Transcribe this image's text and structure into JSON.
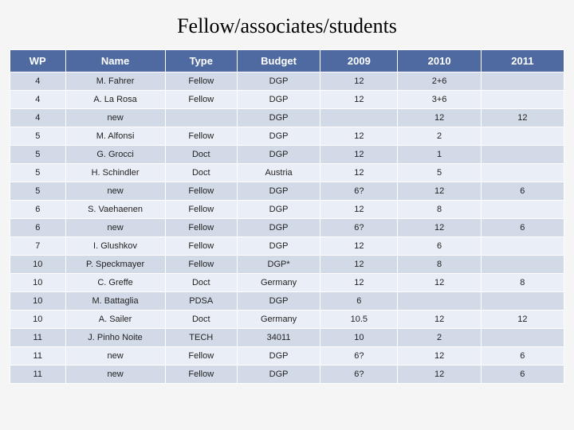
{
  "title": "Fellow/associates/students",
  "table": {
    "type": "table",
    "header_bg": "#4f6aa0",
    "header_fg": "#ffffff",
    "row_odd_bg": "#d2dae8",
    "row_even_bg": "#eaeef6",
    "border_color": "#ffffff",
    "header_fontsize": 13,
    "cell_fontsize": 11,
    "columns": [
      "WP",
      "Name",
      "Type",
      "Budget",
      "2009",
      "2010",
      "2011"
    ],
    "col_widths_pct": [
      10,
      18,
      13,
      15,
      14,
      15,
      15
    ],
    "rows": [
      [
        "4",
        "M. Fahrer",
        "Fellow",
        "DGP",
        "12",
        "2+6",
        ""
      ],
      [
        "4",
        "A. La Rosa",
        "Fellow",
        "DGP",
        "12",
        "3+6",
        ""
      ],
      [
        "4",
        "new",
        "",
        "DGP",
        "",
        "12",
        "12"
      ],
      [
        "5",
        "M. Alfonsi",
        "Fellow",
        "DGP",
        "12",
        "2",
        ""
      ],
      [
        "5",
        "G. Grocci",
        "Doct",
        "DGP",
        "12",
        "1",
        ""
      ],
      [
        "5",
        "H. Schindler",
        "Doct",
        "Austria",
        "12",
        "5",
        ""
      ],
      [
        "5",
        "new",
        "Fellow",
        "DGP",
        "6?",
        "12",
        "6"
      ],
      [
        "6",
        "S. Vaehaenen",
        "Fellow",
        "DGP",
        "12",
        "8",
        ""
      ],
      [
        "6",
        "new",
        "Fellow",
        "DGP",
        "6?",
        "12",
        "6"
      ],
      [
        "7",
        "I. Glushkov",
        "Fellow",
        "DGP",
        "12",
        "6",
        ""
      ],
      [
        "10",
        "P. Speckmayer",
        "Fellow",
        "DGP*",
        "12",
        "8",
        ""
      ],
      [
        "10",
        "C. Greffe",
        "Doct",
        "Germany",
        "12",
        "12",
        "8"
      ],
      [
        "10",
        "M. Battaglia",
        "PDSA",
        "DGP",
        "6",
        "",
        ""
      ],
      [
        "10",
        "A. Sailer",
        "Doct",
        "Germany",
        "10.5",
        "12",
        "12"
      ],
      [
        "11",
        "J. Pinho Noite",
        "TECH",
        "34011",
        "10",
        "2",
        ""
      ],
      [
        "11",
        "new",
        "Fellow",
        "DGP",
        "6?",
        "12",
        "6"
      ],
      [
        "11",
        "new",
        "Fellow",
        "DGP",
        "6?",
        "12",
        "6"
      ]
    ]
  }
}
